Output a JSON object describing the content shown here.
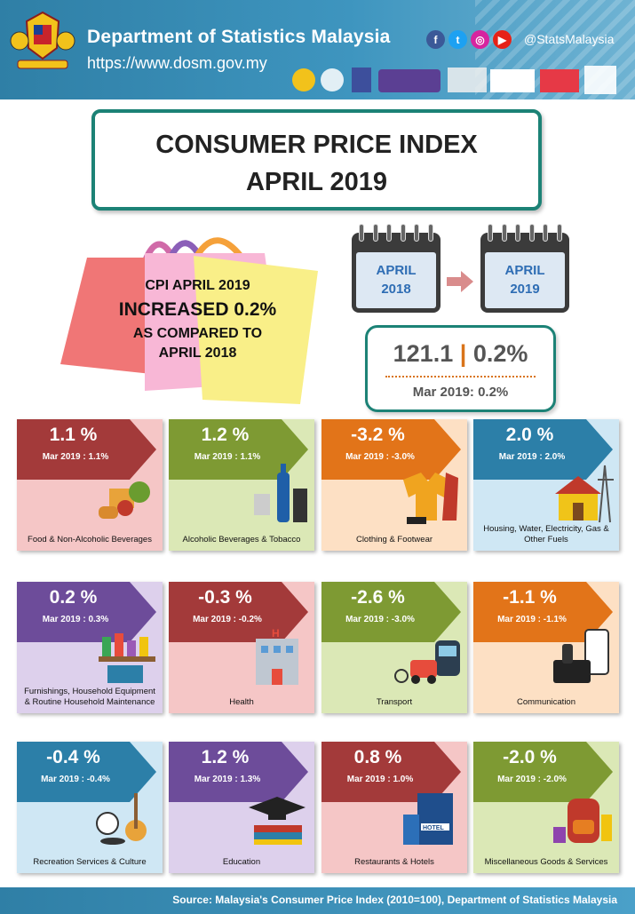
{
  "header": {
    "org_name": "Department of Statistics  Malaysia",
    "url": "https://www.dosm.gov.my",
    "social_handle": "@StatsMalaysia",
    "social_icons": [
      "facebook-icon",
      "twitter-icon",
      "instagram-icon",
      "youtube-icon"
    ],
    "bg_color": "#3a8fb8"
  },
  "title": {
    "line1": "CONSUMER PRICE INDEX",
    "line2": "APRIL 2019"
  },
  "summary": {
    "line1": "CPI APRIL 2019",
    "line2": "INCREASED 0.2%",
    "line3": "AS COMPARED TO",
    "line4": "APRIL 2018"
  },
  "calendars": [
    {
      "month": "APRIL",
      "year": "2018"
    },
    {
      "month": "APRIL",
      "year": "2019"
    }
  ],
  "index": {
    "value": "121.1",
    "separator": "|",
    "change": "0.2%",
    "previous": "Mar 2019: 0.2%"
  },
  "categories": [
    {
      "pct": "1.1 %",
      "prev": "Mar 2019 : 1.1%",
      "label": "Food & Non-Alcoholic Beverages",
      "bg": "#f5c6c6",
      "band": "#a33a3a",
      "dark": "#7f2323",
      "icon": "food-icon"
    },
    {
      "pct": "1.2 %",
      "prev": "Mar 2019 : 1.1%",
      "label": "Alcoholic Beverages & Tobacco",
      "bg": "#dbe8b6",
      "band": "#7e9a33",
      "dark": "#5f7722",
      "icon": "beer-bottle-icon"
    },
    {
      "pct": "-3.2 %",
      "prev": "Mar 2019 : -3.0%",
      "label": "Clothing & Footwear",
      "bg": "#fde0c4",
      "band": "#e27419",
      "dark": "#b95510",
      "icon": "clothing-icon"
    },
    {
      "pct": "2.0 %",
      "prev": "Mar 2019 : 2.0%",
      "label": "Housing, Water, Electricity, Gas & Other Fuels",
      "bg": "#cfe7f4",
      "band": "#2c7fa8",
      "dark": "#1d5d7e",
      "icon": "house-icon"
    },
    {
      "pct": "0.2 %",
      "prev": "Mar 2019 : 0.3%",
      "label": "Furnishings, Household Equipment & Routine Household Maintenance",
      "bg": "#ddd0ec",
      "band": "#6d4c9a",
      "dark": "#4f3475",
      "icon": "household-icon"
    },
    {
      "pct": "-0.3 %",
      "prev": "Mar 2019 : -0.2%",
      "label": "Health",
      "bg": "#f5c6c6",
      "band": "#a33a3a",
      "dark": "#7f2323",
      "icon": "hospital-icon"
    },
    {
      "pct": "-2.6 %",
      "prev": "Mar 2019 : -3.0%",
      "label": "Transport",
      "bg": "#dbe8b6",
      "band": "#7e9a33",
      "dark": "#5f7722",
      "icon": "transport-icon"
    },
    {
      "pct": "-1.1 %",
      "prev": "Mar 2019 : -1.1%",
      "label": "Communication",
      "bg": "#fde0c4",
      "band": "#e27419",
      "dark": "#b95510",
      "icon": "phone-icon"
    },
    {
      "pct": "-0.4 %",
      "prev": "Mar 2019 : -0.4%",
      "label": "Recreation Services & Culture",
      "bg": "#cfe7f4",
      "band": "#2c7fa8",
      "dark": "#1d5d7e",
      "icon": "guitar-icon"
    },
    {
      "pct": "1.2 %",
      "prev": "Mar 2019 : 1.3%",
      "label": "Education",
      "bg": "#ddd0ec",
      "band": "#6d4c9a",
      "dark": "#4f3475",
      "icon": "graduation-cap-icon"
    },
    {
      "pct": "0.8 %",
      "prev": "Mar 2019 : 1.0%",
      "label": "Restaurants & Hotels",
      "bg": "#f5c6c6",
      "band": "#a33a3a",
      "dark": "#7f2323",
      "icon": "hotel-icon"
    },
    {
      "pct": "-2.0 %",
      "prev": "Mar 2019 : -2.0%",
      "label": "Miscellaneous Goods & Services",
      "bg": "#dbe8b6",
      "band": "#7e9a33",
      "dark": "#5f7722",
      "icon": "backpack-icon"
    }
  ],
  "footer": {
    "source": "Source: Malaysia's Consumer Price Index (2010=100), Department of Statistics Malaysia"
  }
}
